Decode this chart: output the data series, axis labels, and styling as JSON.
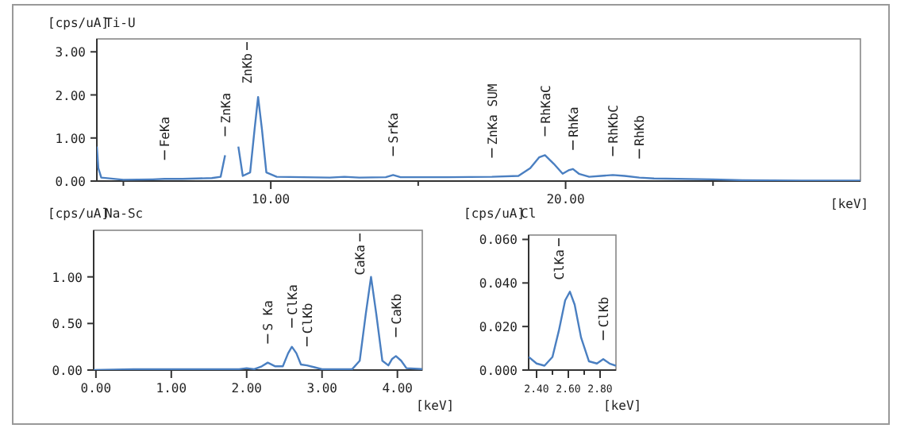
{
  "chart_data": [
    {
      "type": "line",
      "title": "Ti-U",
      "ylabel": "[cps/uA]",
      "xlabel": "[keV]",
      "xlim": [
        4.1,
        30
      ],
      "ylim": [
        0,
        3.3
      ],
      "xticks": [
        {
          "value": 5,
          "label": null
        },
        {
          "value": 10,
          "label": "10.00"
        },
        {
          "value": 15,
          "label": null
        },
        {
          "value": 20,
          "label": "20.00"
        },
        {
          "value": 25,
          "label": null
        }
      ],
      "yticks": [
        {
          "value": 0,
          "label": "0.00"
        },
        {
          "value": 1,
          "label": "1.00"
        },
        {
          "value": 2,
          "label": "2.00"
        },
        {
          "value": 3,
          "label": "3.00"
        }
      ],
      "grid": false,
      "marker": "none",
      "line_style": "solid",
      "series": [
        {
          "color": "#4a7fc1",
          "x": [
            4.1,
            4.15,
            4.25,
            5,
            6,
            6.4,
            7,
            8,
            8.3,
            8.45,
            8.55,
            8.8,
            8.9,
            9.05,
            9.3,
            9.45,
            9.57,
            9.7,
            9.85,
            10.2,
            12,
            12.5,
            13,
            13.9,
            14.15,
            14.4,
            16,
            17.5,
            18.4,
            18.8,
            19.1,
            19.3,
            19.6,
            19.9,
            20.1,
            20.25,
            20.45,
            20.8,
            21.2,
            21.6,
            22,
            22.5,
            23,
            25,
            26,
            28,
            30
          ],
          "values": [
            0.8,
            0.3,
            0.08,
            0.03,
            0.04,
            0.05,
            0.05,
            0.07,
            0.1,
            0.6,
            null,
            null,
            0.8,
            0.12,
            0.2,
            1.2,
            1.95,
            1.2,
            0.2,
            0.1,
            0.08,
            0.1,
            0.08,
            0.09,
            0.14,
            0.09,
            0.09,
            0.1,
            0.12,
            0.3,
            0.55,
            0.6,
            0.4,
            0.17,
            0.25,
            0.28,
            0.17,
            0.1,
            0.12,
            0.14,
            0.12,
            0.08,
            0.06,
            0.04,
            0.02,
            0.01,
            0.01
          ]
        }
      ],
      "annotations": [
        {
          "text": "FeKa",
          "x": 6.4,
          "y": 0.05
        },
        {
          "text": "ZnKa",
          "x": 8.45,
          "y": 0.6
        },
        {
          "text": "ZnKb",
          "x": 9.57,
          "y": 1.95
        },
        {
          "text": "SrKa",
          "x": 14.15,
          "y": 0.14
        },
        {
          "text": "ZnKa SUM",
          "x": 17.5,
          "y": 0.1
        },
        {
          "text": "RhKaC",
          "x": 19.3,
          "y": 0.6
        },
        {
          "text": "RhKa",
          "x": 20.25,
          "y": 0.28
        },
        {
          "text": "RhKbC",
          "x": 21.6,
          "y": 0.14
        },
        {
          "text": "RhKb",
          "x": 22.5,
          "y": 0.08
        }
      ]
    },
    {
      "type": "line",
      "title": "Na-Sc",
      "ylabel": "[cps/uA]",
      "xlabel": "[keV]",
      "xlim": [
        -0.03,
        4.33
      ],
      "ylim": [
        0,
        1.5
      ],
      "xticks": [
        {
          "value": 0,
          "label": "0.00"
        },
        {
          "value": 1,
          "label": "1.00"
        },
        {
          "value": 2,
          "label": "2.00"
        },
        {
          "value": 3,
          "label": "3.00"
        },
        {
          "value": 4,
          "label": "4.00"
        }
      ],
      "yticks": [
        {
          "value": 0,
          "label": "0.00"
        },
        {
          "value": 0.5,
          "label": "0.50"
        },
        {
          "value": 1,
          "label": "1.00"
        }
      ],
      "grid": false,
      "marker": "none",
      "line_style": "solid",
      "series": [
        {
          "color": "#4a7fc1",
          "x": [
            -0.03,
            0.5,
            1,
            1.9,
            2.0,
            2.1,
            2.2,
            2.28,
            2.38,
            2.48,
            2.55,
            2.6,
            2.66,
            2.72,
            2.8,
            2.9,
            3.0,
            3.4,
            3.5,
            3.58,
            3.65,
            3.72,
            3.8,
            3.88,
            3.93,
            3.98,
            4.05,
            4.12,
            4.33
          ],
          "values": [
            0.0,
            0.01,
            0.01,
            0.01,
            0.02,
            0.01,
            0.04,
            0.08,
            0.04,
            0.04,
            0.18,
            0.25,
            0.18,
            0.06,
            0.05,
            0.03,
            0.01,
            0.01,
            0.1,
            0.6,
            1.0,
            0.6,
            0.1,
            0.05,
            0.12,
            0.15,
            0.1,
            0.02,
            0.01
          ]
        }
      ],
      "annotations": [
        {
          "text": "S Ka",
          "x": 2.28,
          "y": 0.08
        },
        {
          "text": "ClKa",
          "x": 2.6,
          "y": 0.25
        },
        {
          "text": "ClKb",
          "x": 2.8,
          "y": 0.05
        },
        {
          "text": "CaKa",
          "x": 3.65,
          "y": 1.0
        },
        {
          "text": "CaKb",
          "x": 3.98,
          "y": 0.15
        }
      ]
    },
    {
      "type": "line",
      "title": "Cl",
      "ylabel": "[cps/uA]",
      "xlabel": "[keV]",
      "xlim": [
        2.35,
        2.9
      ],
      "ylim": [
        0,
        0.062
      ],
      "xticks": [
        {
          "value": 2.4,
          "label": "2.40"
        },
        {
          "value": 2.5,
          "label": null
        },
        {
          "value": 2.6,
          "label": "2.60"
        },
        {
          "value": 2.7,
          "label": null
        },
        {
          "value": 2.8,
          "label": "2.80"
        }
      ],
      "yticks": [
        {
          "value": 0,
          "label": "0.000"
        },
        {
          "value": 0.02,
          "label": "0.020"
        },
        {
          "value": 0.04,
          "label": "0.040"
        },
        {
          "value": 0.06,
          "label": "0.060"
        }
      ],
      "grid": false,
      "marker": "none",
      "line_style": "solid",
      "series": [
        {
          "color": "#4a7fc1",
          "x": [
            2.35,
            2.4,
            2.45,
            2.5,
            2.54,
            2.58,
            2.61,
            2.64,
            2.68,
            2.73,
            2.78,
            2.82,
            2.86,
            2.9
          ],
          "values": [
            0.006,
            0.003,
            0.002,
            0.006,
            0.018,
            0.032,
            0.036,
            0.03,
            0.015,
            0.004,
            0.003,
            0.005,
            0.003,
            0.002
          ]
        }
      ],
      "annotations": [
        {
          "text": "ClKa",
          "x": 2.61,
          "y": 0.036
        },
        {
          "text": "ClKb",
          "x": 2.82,
          "y": 0.005
        }
      ]
    }
  ]
}
